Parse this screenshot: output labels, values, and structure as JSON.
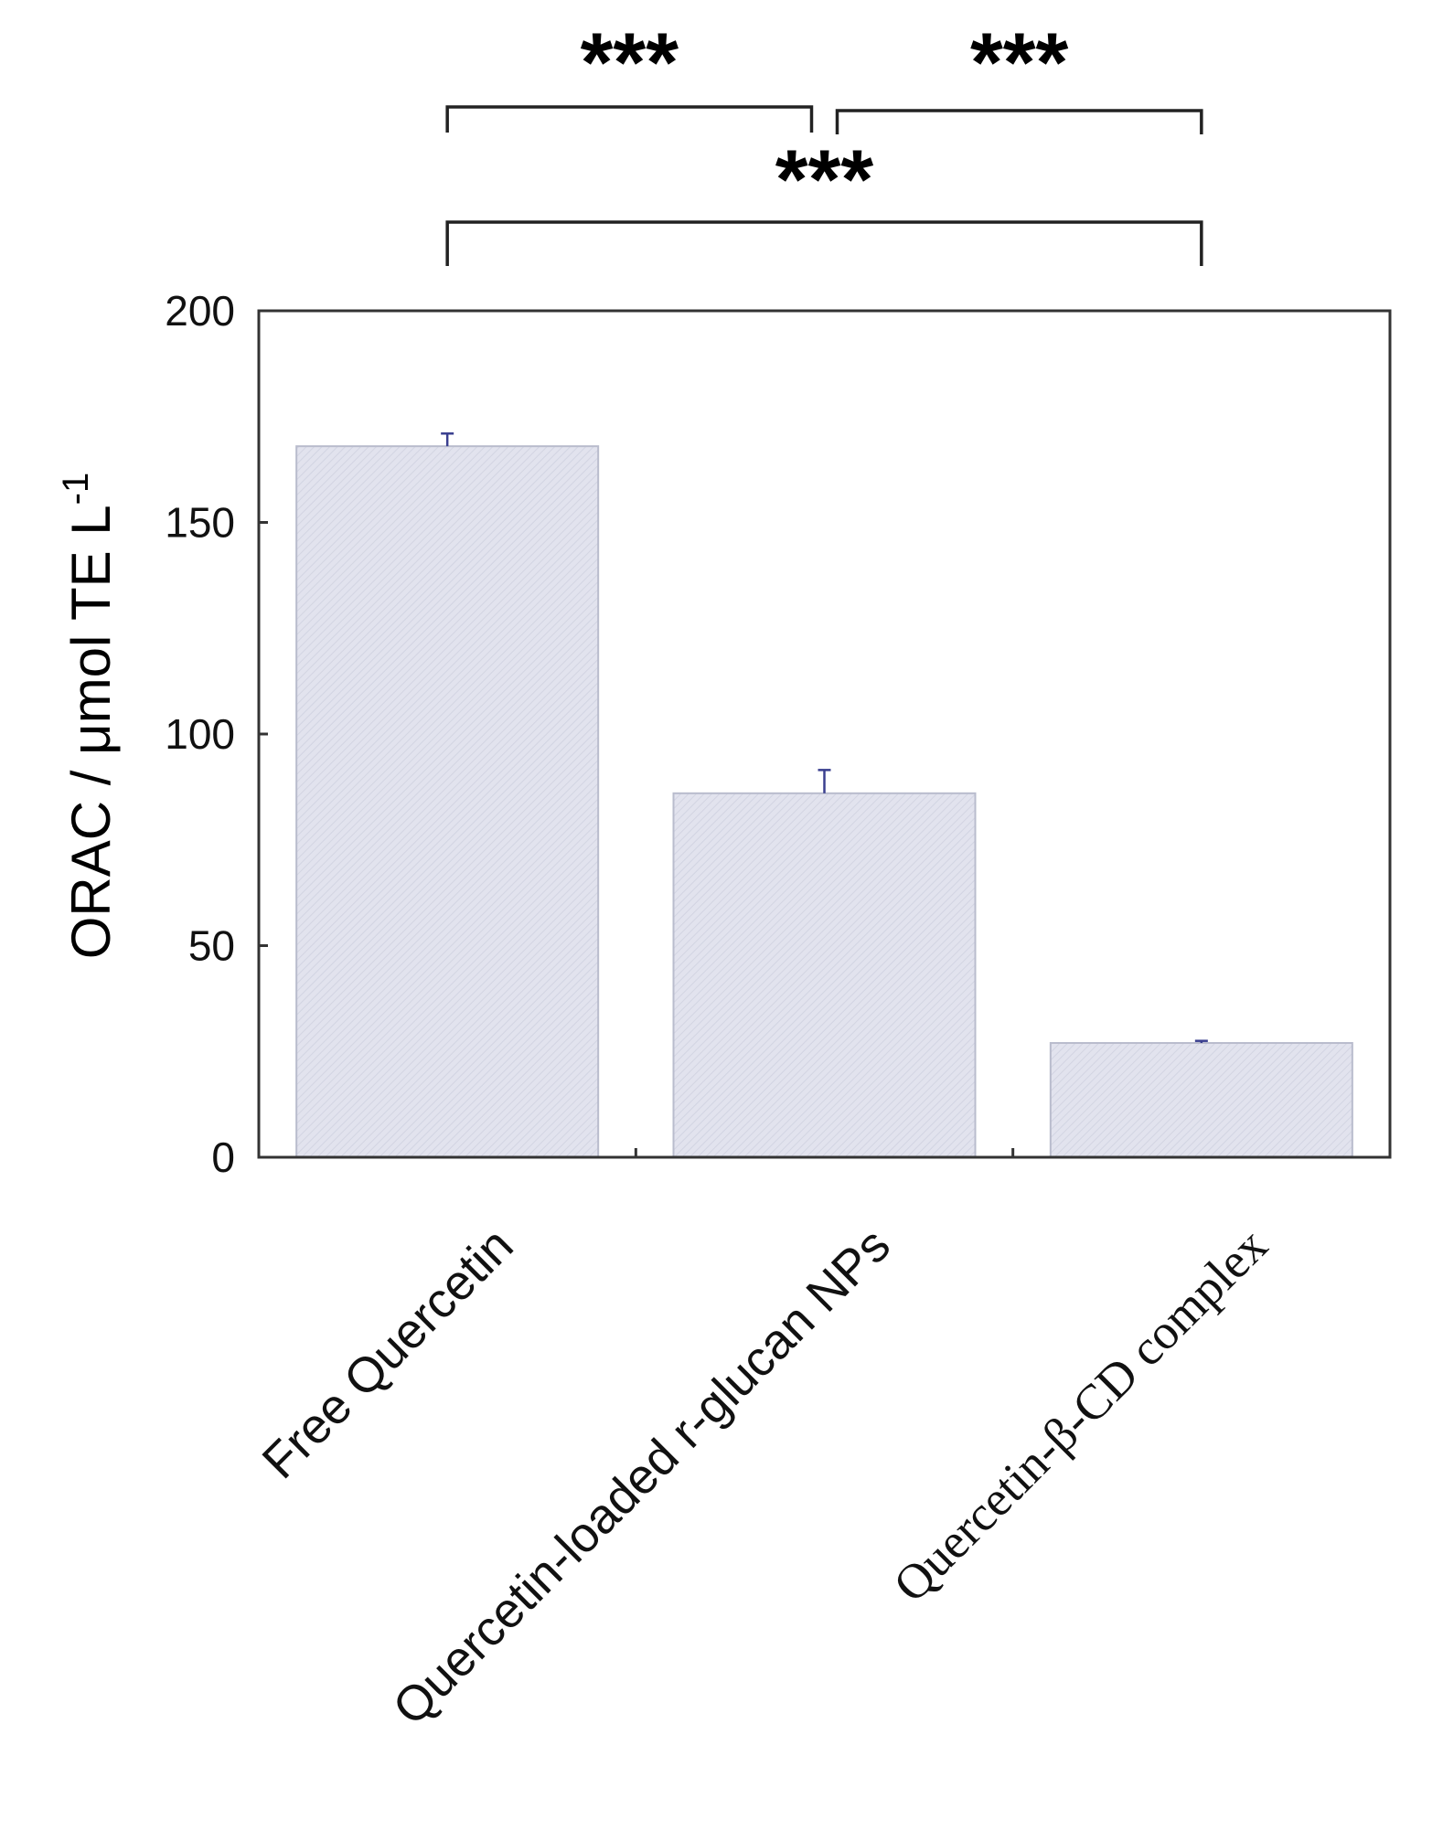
{
  "chart_data": {
    "type": "bar",
    "categories": [
      "Free Quercetin",
      "Quercetin-loaded r-glucan NPs",
      "Quercetin-β-CD complex"
    ],
    "values": [
      168,
      86,
      27
    ],
    "errors": [
      3,
      5.5,
      0.5
    ],
    "ylabel": "ORAC / μmol TE L",
    "ylabel_superscript": "-1",
    "ylim": [
      0,
      200
    ],
    "yticks": [
      0,
      50,
      100,
      150,
      200
    ],
    "grid": false,
    "bar_color": "#dfe0ec",
    "bar_edge_color": "#b9bccd",
    "error_color": "#3a3f8f",
    "significance": [
      {
        "from": 0,
        "to": 1,
        "label": "***"
      },
      {
        "from": 1,
        "to": 2,
        "label": "***"
      },
      {
        "from": 0,
        "to": 2,
        "label": "***"
      }
    ]
  }
}
